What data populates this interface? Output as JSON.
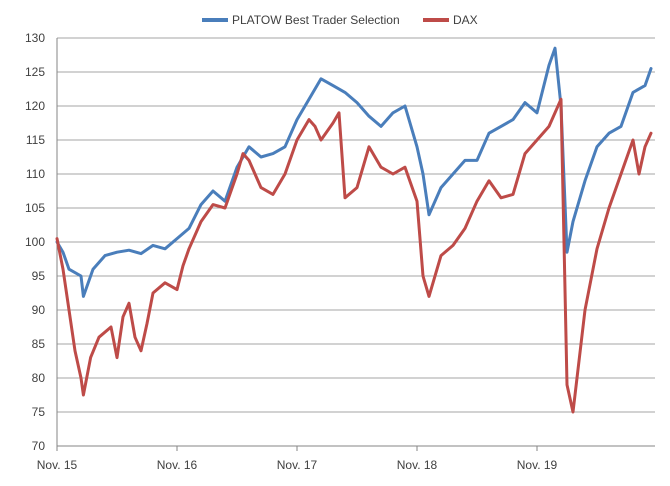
{
  "chart_data": {
    "type": "line",
    "title": "",
    "xlabel": "",
    "ylabel": "",
    "ylim": [
      70,
      130
    ],
    "y_ticks": [
      70,
      75,
      80,
      85,
      90,
      95,
      100,
      105,
      110,
      115,
      120,
      125,
      130
    ],
    "x_ticks": [
      "Nov. 15",
      "Nov. 16",
      "Nov. 17",
      "Nov. 18",
      "Nov. 19"
    ],
    "grid": "horizontal",
    "legend_position": "top",
    "series": [
      {
        "name": "PLATOW Best Trader Selection",
        "color": "#4a7ebb",
        "points": [
          [
            0.0,
            100
          ],
          [
            0.05,
            98.5
          ],
          [
            0.1,
            96
          ],
          [
            0.2,
            95
          ],
          [
            0.22,
            92
          ],
          [
            0.3,
            96
          ],
          [
            0.4,
            98
          ],
          [
            0.5,
            98.5
          ],
          [
            0.6,
            98.8
          ],
          [
            0.7,
            98.3
          ],
          [
            0.8,
            99.5
          ],
          [
            0.9,
            99
          ],
          [
            1.0,
            100.5
          ],
          [
            1.1,
            102
          ],
          [
            1.2,
            105.5
          ],
          [
            1.3,
            107.5
          ],
          [
            1.4,
            106
          ],
          [
            1.5,
            111
          ],
          [
            1.6,
            114
          ],
          [
            1.7,
            112.5
          ],
          [
            1.8,
            113
          ],
          [
            1.9,
            114
          ],
          [
            2.0,
            118
          ],
          [
            2.1,
            121
          ],
          [
            2.2,
            124
          ],
          [
            2.3,
            123
          ],
          [
            2.4,
            122
          ],
          [
            2.5,
            120.5
          ],
          [
            2.6,
            118.5
          ],
          [
            2.7,
            117
          ],
          [
            2.8,
            119
          ],
          [
            2.9,
            120
          ],
          [
            3.0,
            114
          ],
          [
            3.05,
            110
          ],
          [
            3.1,
            104
          ],
          [
            3.2,
            108
          ],
          [
            3.3,
            110
          ],
          [
            3.4,
            112
          ],
          [
            3.5,
            112
          ],
          [
            3.6,
            116
          ],
          [
            3.7,
            117
          ],
          [
            3.8,
            118
          ],
          [
            3.9,
            120.5
          ],
          [
            4.0,
            119
          ],
          [
            4.1,
            126
          ],
          [
            4.15,
            128.5
          ],
          [
            4.2,
            120
          ],
          [
            4.25,
            98.5
          ],
          [
            4.3,
            103
          ],
          [
            4.4,
            109
          ],
          [
            4.5,
            114
          ],
          [
            4.6,
            116
          ],
          [
            4.7,
            117
          ],
          [
            4.8,
            122
          ],
          [
            4.9,
            123
          ],
          [
            4.95,
            125.5
          ]
        ]
      },
      {
        "name": "DAX",
        "color": "#be4b48",
        "points": [
          [
            0.0,
            100.5
          ],
          [
            0.05,
            96
          ],
          [
            0.1,
            90
          ],
          [
            0.15,
            84
          ],
          [
            0.2,
            80
          ],
          [
            0.22,
            77.5
          ],
          [
            0.28,
            83
          ],
          [
            0.35,
            86
          ],
          [
            0.45,
            87.5
          ],
          [
            0.5,
            83
          ],
          [
            0.55,
            89
          ],
          [
            0.6,
            91
          ],
          [
            0.65,
            86
          ],
          [
            0.7,
            84
          ],
          [
            0.75,
            88
          ],
          [
            0.8,
            92.5
          ],
          [
            0.9,
            94
          ],
          [
            1.0,
            93
          ],
          [
            1.05,
            96.5
          ],
          [
            1.1,
            99
          ],
          [
            1.2,
            103
          ],
          [
            1.3,
            105.5
          ],
          [
            1.4,
            105
          ],
          [
            1.5,
            110
          ],
          [
            1.55,
            113
          ],
          [
            1.6,
            112
          ],
          [
            1.7,
            108
          ],
          [
            1.8,
            107
          ],
          [
            1.9,
            110
          ],
          [
            2.0,
            115
          ],
          [
            2.1,
            118
          ],
          [
            2.15,
            117
          ],
          [
            2.2,
            115
          ],
          [
            2.3,
            117.5
          ],
          [
            2.35,
            119
          ],
          [
            2.4,
            106.5
          ],
          [
            2.5,
            108
          ],
          [
            2.6,
            114
          ],
          [
            2.7,
            111
          ],
          [
            2.8,
            110
          ],
          [
            2.9,
            111
          ],
          [
            3.0,
            106
          ],
          [
            3.05,
            95
          ],
          [
            3.1,
            92
          ],
          [
            3.2,
            98
          ],
          [
            3.3,
            99.5
          ],
          [
            3.4,
            102
          ],
          [
            3.5,
            106
          ],
          [
            3.6,
            109
          ],
          [
            3.7,
            106.5
          ],
          [
            3.8,
            107
          ],
          [
            3.9,
            113
          ],
          [
            4.0,
            115
          ],
          [
            4.1,
            117
          ],
          [
            4.2,
            121
          ],
          [
            4.25,
            79
          ],
          [
            4.3,
            75
          ],
          [
            4.4,
            90
          ],
          [
            4.5,
            99
          ],
          [
            4.6,
            105
          ],
          [
            4.7,
            110
          ],
          [
            4.8,
            115
          ],
          [
            4.85,
            110
          ],
          [
            4.9,
            114
          ],
          [
            4.95,
            116
          ]
        ]
      }
    ]
  }
}
